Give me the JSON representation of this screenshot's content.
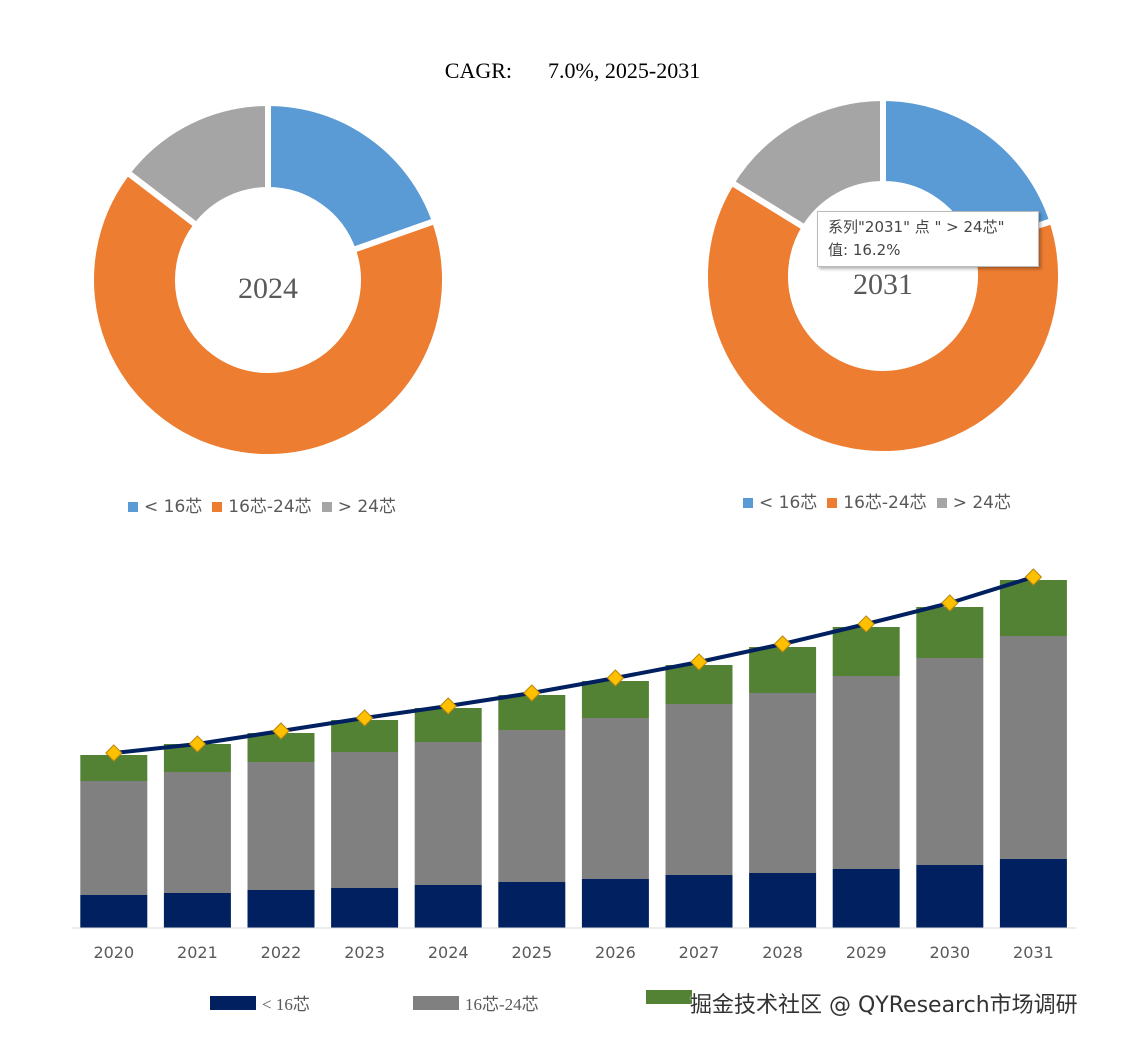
{
  "header": {
    "cagr_label": "CAGR:",
    "cagr_value": "7.0%, 2025-2031"
  },
  "colors": {
    "lt16": "#5B9BD5",
    "mid": "#ED7D31",
    "gt24": "#A5A5A5",
    "bar_lt16": "#002060",
    "bar_mid": "#808080",
    "bar_gt24": "#548235",
    "line": "#002060",
    "marker": "#FFC000"
  },
  "chart_data": [
    {
      "type": "pie",
      "donut": true,
      "title": "2024",
      "categories": [
        "< 16芯",
        "16芯-24芯",
        "> 24芯"
      ],
      "values": [
        19.6,
        65.8,
        14.6
      ],
      "legend": "bottom"
    },
    {
      "type": "pie",
      "donut": true,
      "title": "2031",
      "categories": [
        "< 16芯",
        "16芯-24芯",
        "> 24芯"
      ],
      "values": [
        20.0,
        63.8,
        16.2
      ],
      "legend": "bottom"
    },
    {
      "type": "bar",
      "stacked": true,
      "categories": [
        "2020",
        "2021",
        "2022",
        "2023",
        "2024",
        "2025",
        "2026",
        "2027",
        "2028",
        "2029",
        "2030",
        "2031"
      ],
      "series": [
        {
          "name": "< 16芯",
          "values": [
            33,
            35,
            38,
            40,
            43,
            46,
            49,
            53,
            55,
            59,
            63,
            69
          ]
        },
        {
          "name": "16芯-24芯",
          "values": [
            114,
            121,
            128,
            136,
            143,
            152,
            161,
            171,
            180,
            193,
            207,
            223
          ]
        },
        {
          "name": "",
          "values": [
            26,
            28,
            29,
            32,
            34,
            35,
            37,
            39,
            46,
            49,
            51,
            56
          ]
        }
      ],
      "line": {
        "values": [
          175,
          184,
          197,
          210,
          222,
          235,
          250,
          266,
          284,
          304,
          325,
          351
        ]
      },
      "legend": "bottom",
      "grid": false
    }
  ],
  "tooltip": {
    "line1": "系列\"2031\" 点 \" > 24芯\"",
    "line2": "值: 16.2%"
  },
  "watermark": "掘金技术社区 @ QYResearch市场调研"
}
